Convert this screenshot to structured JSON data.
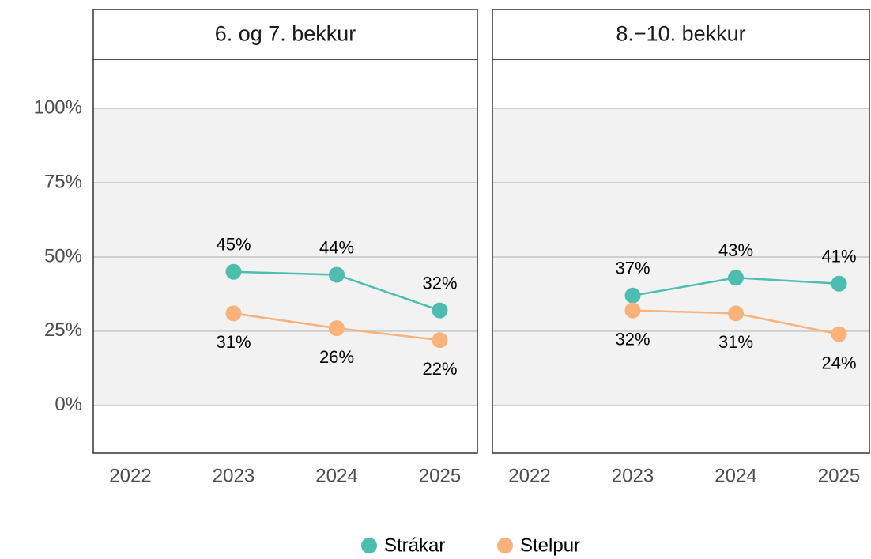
{
  "chart_data": [
    {
      "type": "line",
      "title": "6. og 7. bekkur",
      "categories": [
        "2022",
        "2023",
        "2024",
        "2025"
      ],
      "series": [
        {
          "name": "Strákar",
          "color": "#4dbdb0",
          "values": [
            null,
            45,
            44,
            32
          ],
          "value_labels": [
            null,
            "45%",
            "44%",
            "32%"
          ]
        },
        {
          "name": "Stelpur",
          "color": "#f8b27a",
          "values": [
            null,
            31,
            26,
            22
          ],
          "value_labels": [
            null,
            "31%",
            "26%",
            "22%"
          ]
        }
      ],
      "ylim": [
        -16,
        116.5
      ],
      "yticks": [
        {
          "value": 0,
          "label": "0%"
        },
        {
          "value": 25,
          "label": "25%"
        },
        {
          "value": 50,
          "label": "50%"
        },
        {
          "value": 75,
          "label": "75%"
        },
        {
          "value": 100,
          "label": "100%"
        }
      ],
      "grid": true
    },
    {
      "type": "line",
      "title": "8.−10. bekkur",
      "categories": [
        "2022",
        "2023",
        "2024",
        "2025"
      ],
      "series": [
        {
          "name": "Strákar",
          "color": "#4dbdb0",
          "values": [
            null,
            37,
            43,
            41
          ],
          "value_labels": [
            null,
            "37%",
            "43%",
            "41%"
          ]
        },
        {
          "name": "Stelpur",
          "color": "#f8b27a",
          "values": [
            null,
            32,
            31,
            24
          ],
          "value_labels": [
            null,
            "32%",
            "31%",
            "24%"
          ]
        }
      ],
      "ylim": [
        -16,
        116.5
      ],
      "yticks": [
        0,
        25,
        50,
        75,
        100
      ],
      "grid": true
    }
  ]
}
